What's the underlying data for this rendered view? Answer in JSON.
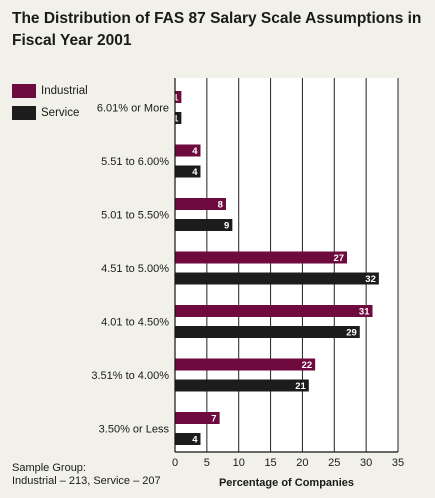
{
  "title_lines": [
    "The Distribution of FAS 87 Salary Scale Assumptions in",
    "Fiscal Year 2001"
  ],
  "colors": {
    "industrial": "#6e0a3e",
    "service": "#1c1c1c",
    "background": "#f1f1e9",
    "plot_background": "#ffffff"
  },
  "footnote": {
    "line1": "Sample Group:",
    "line2": "Industrial – 213, Service – 207"
  },
  "chart_data": {
    "type": "bar",
    "orientation": "horizontal",
    "title": "The Distribution of FAS 87 Salary Scale Assumptions in Fiscal Year 2001",
    "xlabel": "Percentage of Companies",
    "ylabel": "",
    "xlim": [
      0,
      35
    ],
    "xticks": [
      0,
      5,
      10,
      15,
      20,
      25,
      30,
      35
    ],
    "grid": "vertical",
    "legend_position": "top-left",
    "categories": [
      "6.01% or More",
      "5.51 to 6.00%",
      "5.01 to 5.50%",
      "4.51 to 5.00%",
      "4.01 to 4.50%",
      "3.51% to 4.00%",
      "3.50% or Less"
    ],
    "series": [
      {
        "name": "Industrial",
        "values": [
          1,
          4,
          8,
          27,
          31,
          22,
          7
        ]
      },
      {
        "name": "Service",
        "values": [
          1,
          4,
          9,
          32,
          29,
          21,
          4
        ]
      }
    ]
  }
}
